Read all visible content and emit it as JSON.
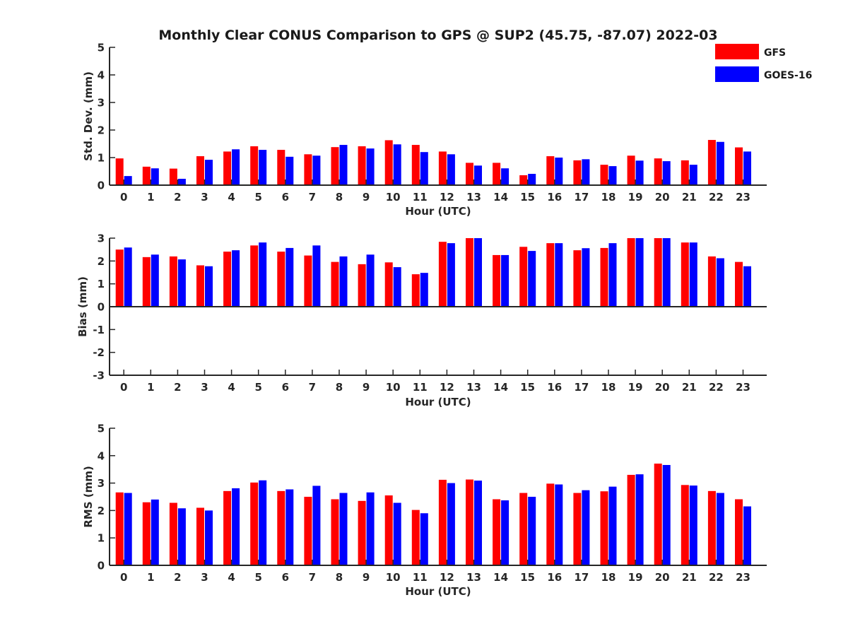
{
  "chart_data": {
    "title": "Monthly Clear CONUS Comparison to GPS @ SUP2 (45.75, -87.07) 2022-03",
    "legend": {
      "placement": "top-right",
      "entries": [
        {
          "name": "GFS",
          "color": "#ff0000"
        },
        {
          "name": "GOES-16",
          "color": "#0000ff"
        }
      ]
    },
    "panels": [
      {
        "type": "bar",
        "xlabel": "Hour (UTC)",
        "ylabel": "Std. Dev. (mm)",
        "ylim": [
          0,
          5
        ],
        "yticks": [
          0,
          1,
          2,
          3,
          4,
          5
        ],
        "categories": [
          "0",
          "1",
          "2",
          "3",
          "4",
          "5",
          "6",
          "7",
          "8",
          "9",
          "10",
          "11",
          "12",
          "13",
          "14",
          "15",
          "16",
          "17",
          "18",
          "19",
          "20",
          "21",
          "22",
          "23"
        ],
        "series": [
          {
            "name": "GFS",
            "color": "#ff0000",
            "values": [
              0.97,
              0.67,
              0.6,
              1.05,
              1.22,
              1.41,
              1.28,
              1.12,
              1.38,
              1.41,
              1.63,
              1.46,
              1.22,
              0.81,
              0.81,
              0.36,
              1.05,
              0.9,
              0.74,
              1.07,
              0.97,
              0.9,
              1.64,
              1.37
            ]
          },
          {
            "name": "GOES-16",
            "color": "#0000ff",
            "values": [
              0.33,
              0.61,
              0.23,
              0.92,
              1.3,
              1.28,
              1.03,
              1.07,
              1.46,
              1.33,
              1.48,
              1.2,
              1.12,
              0.71,
              0.61,
              0.41,
              1.0,
              0.94,
              0.69,
              0.89,
              0.87,
              0.74,
              1.57,
              1.22
            ]
          }
        ]
      },
      {
        "type": "bar",
        "xlabel": "Hour (UTC)",
        "ylabel": "Bias (mm)",
        "ylim": [
          -3,
          3
        ],
        "yticks": [
          -3,
          -2,
          -1,
          0,
          1,
          2,
          3
        ],
        "categories": [
          "0",
          "1",
          "2",
          "3",
          "4",
          "5",
          "6",
          "7",
          "8",
          "9",
          "10",
          "11",
          "12",
          "13",
          "14",
          "15",
          "16",
          "17",
          "18",
          "19",
          "20",
          "21",
          "22",
          "23"
        ],
        "series": [
          {
            "name": "GFS",
            "color": "#ff0000",
            "values": [
              2.5,
              2.17,
              2.2,
              1.81,
              2.41,
              2.68,
              2.41,
              2.24,
              1.96,
              1.86,
              1.94,
              1.42,
              2.84,
              3.0,
              2.26,
              2.62,
              2.78,
              2.47,
              2.57,
              3.0,
              3.0,
              2.81,
              2.2,
              1.96
            ]
          },
          {
            "name": "GOES-16",
            "color": "#0000ff",
            "values": [
              2.59,
              2.28,
              2.07,
              1.77,
              2.47,
              2.81,
              2.57,
              2.68,
              2.2,
              2.28,
              1.73,
              1.48,
              2.78,
              3.0,
              2.26,
              2.44,
              2.78,
              2.56,
              2.78,
              3.0,
              3.0,
              2.81,
              2.12,
              1.77
            ]
          }
        ]
      },
      {
        "type": "bar",
        "xlabel": "Hour (UTC)",
        "ylabel": "RMS (mm)",
        "ylim": [
          0,
          5
        ],
        "yticks": [
          0,
          1,
          2,
          3,
          4,
          5
        ],
        "categories": [
          "0",
          "1",
          "2",
          "3",
          "4",
          "5",
          "6",
          "7",
          "8",
          "9",
          "10",
          "11",
          "12",
          "13",
          "14",
          "15",
          "16",
          "17",
          "18",
          "19",
          "20",
          "21",
          "22",
          "23"
        ],
        "series": [
          {
            "name": "GFS",
            "color": "#ff0000",
            "values": [
              2.66,
              2.3,
              2.28,
              2.1,
              2.71,
              3.02,
              2.71,
              2.5,
              2.41,
              2.35,
              2.55,
              2.02,
              3.12,
              3.13,
              2.41,
              2.64,
              2.98,
              2.64,
              2.7,
              3.3,
              3.71,
              2.93,
              2.71,
              2.41
            ]
          },
          {
            "name": "GOES-16",
            "color": "#0000ff",
            "values": [
              2.64,
              2.4,
              2.08,
              2.0,
              2.81,
              3.1,
              2.77,
              2.9,
              2.64,
              2.66,
              2.28,
              1.9,
              3.0,
              3.09,
              2.37,
              2.5,
              2.95,
              2.74,
              2.87,
              3.32,
              3.66,
              2.91,
              2.64,
              2.15
            ]
          }
        ]
      }
    ]
  }
}
